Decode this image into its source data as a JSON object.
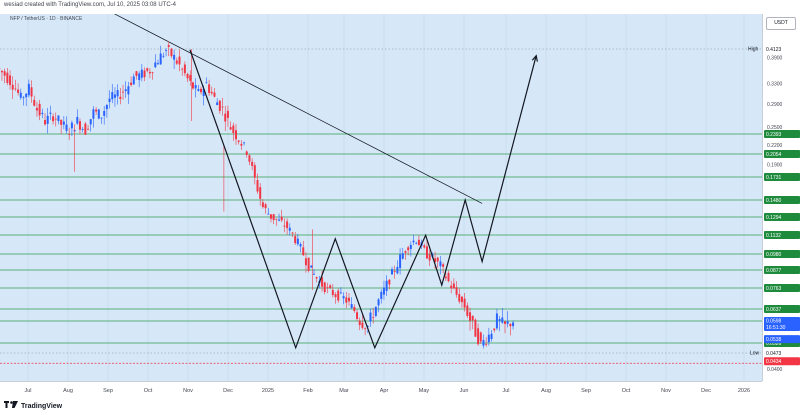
{
  "header": {
    "text": "wesiad created with TradingView.com, Jul 10, 2025 03:08 UTC-4"
  },
  "symbol": {
    "text": "NFP / TetherUS · 1D · BINANCE"
  },
  "currency": "USDT",
  "footer": {
    "logo_icon": "tradingview-logo-icon",
    "brand": "TradingView"
  },
  "colors": {
    "background": "#d6e8f8",
    "candle_up": "#2962ff",
    "candle_down": "#f23645",
    "level_line": "#2e9e4f",
    "level_label_bg": "#1e8a3c",
    "trend_line": "#131722",
    "current_price_bg": "#2962ff",
    "low_line": "#f23645"
  },
  "chart_data": {
    "type": "line",
    "title": "",
    "xlabel": "",
    "ylabel": "",
    "ylim": [
      0.04,
      0.43
    ],
    "x_categories": [
      "Jul",
      "Aug",
      "Sep",
      "Oct",
      "Nov",
      "Dec",
      "2025",
      "Feb",
      "Mar",
      "Apr",
      "May",
      "Jun",
      "Jul",
      "Aug",
      "Sep",
      "Oct",
      "Nov",
      "Dec",
      "2026"
    ],
    "price_ticks": [
      {
        "label": "0.4123",
        "value": 0.4123
      },
      {
        "label": "0.3900",
        "value": 0.39
      },
      {
        "label": "0.3300",
        "value": 0.33
      },
      {
        "label": "0.2900",
        "value": 0.29
      },
      {
        "label": "0.2500",
        "value": 0.25
      },
      {
        "label": "0.2200",
        "value": 0.22
      },
      {
        "label": "0.1900",
        "value": 0.19
      },
      {
        "label": "0.0473",
        "value": 0.0473
      },
      {
        "label": "0.0400",
        "value": 0.04
      }
    ],
    "levels": [
      {
        "label": "0.2393",
        "value": 0.2393
      },
      {
        "label": "0.2054",
        "value": 0.2054
      },
      {
        "label": "0.1731",
        "value": 0.1731
      },
      {
        "label": "0.1480",
        "value": 0.148
      },
      {
        "label": "0.1294",
        "value": 0.1294
      },
      {
        "label": "0.1132",
        "value": 0.1132
      },
      {
        "label": "0.0980",
        "value": 0.098
      },
      {
        "label": "0.0877",
        "value": 0.0877
      },
      {
        "label": "0.0763",
        "value": 0.0763
      },
      {
        "label": "0.0637",
        "value": 0.0637
      },
      {
        "label": "0.0598",
        "value": 0.0598
      },
      {
        "label": "0.0526",
        "value": 0.0526
      }
    ],
    "high": {
      "label": "High",
      "value": 0.4123
    },
    "low": {
      "label": "Low",
      "value": 0.0473
    },
    "low_marker": {
      "label": "0.0434",
      "value": 0.0434
    },
    "current_price": {
      "label": "0.0598",
      "countdown": "16:51:30",
      "value": 0.0598
    },
    "secondary_price": {
      "label": "0.0538",
      "value": 0.0538
    },
    "price_path": [
      [
        -1,
        0.365
      ],
      [
        0,
        0.35
      ],
      [
        1,
        0.33
      ],
      [
        2,
        0.3
      ],
      [
        3,
        0.32
      ],
      [
        4,
        0.28
      ],
      [
        5,
        0.26
      ],
      [
        6,
        0.27
      ],
      [
        7,
        0.255
      ],
      [
        8,
        0.245
      ],
      [
        9,
        0.26
      ],
      [
        10,
        0.245
      ],
      [
        11,
        0.275
      ],
      [
        12,
        0.27
      ],
      [
        13,
        0.3
      ],
      [
        14,
        0.305
      ],
      [
        15,
        0.32
      ],
      [
        16,
        0.345
      ],
      [
        17,
        0.35
      ],
      [
        18,
        0.36
      ],
      [
        19,
        0.385
      ],
      [
        20,
        0.41
      ],
      [
        21,
        0.39
      ],
      [
        22,
        0.36
      ],
      [
        23,
        0.33
      ],
      [
        24,
        0.31
      ],
      [
        25,
        0.33
      ],
      [
        26,
        0.3
      ],
      [
        27,
        0.28
      ],
      [
        28,
        0.25
      ],
      [
        29,
        0.23
      ],
      [
        30,
        0.21
      ],
      [
        31,
        0.17
      ],
      [
        32,
        0.14
      ],
      [
        33,
        0.13
      ],
      [
        34,
        0.125
      ],
      [
        35,
        0.12
      ],
      [
        36,
        0.11
      ],
      [
        37,
        0.098
      ],
      [
        38,
        0.087
      ],
      [
        39,
        0.08
      ],
      [
        40,
        0.075
      ],
      [
        41,
        0.072
      ],
      [
        42,
        0.07
      ],
      [
        43,
        0.065
      ],
      [
        44,
        0.06
      ],
      [
        45,
        0.058
      ],
      [
        46,
        0.065
      ],
      [
        47,
        0.075
      ],
      [
        48,
        0.085
      ],
      [
        49,
        0.095
      ],
      [
        50,
        0.105
      ],
      [
        51,
        0.11
      ],
      [
        52,
        0.1
      ],
      [
        53,
        0.095
      ],
      [
        54,
        0.09
      ],
      [
        55,
        0.08
      ],
      [
        56,
        0.072
      ],
      [
        57,
        0.065
      ],
      [
        58,
        0.058
      ],
      [
        59,
        0.052
      ],
      [
        60,
        0.055
      ],
      [
        61,
        0.06
      ],
      [
        62,
        0.058
      ],
      [
        63,
        0.06
      ]
    ],
    "pattern_path": [
      [
        22.8,
        0.41
      ],
      [
        35.9,
        0.05
      ],
      [
        40.8,
        0.11
      ],
      [
        45.7,
        0.05
      ],
      [
        52.0,
        0.113
      ],
      [
        54.0,
        0.078
      ],
      [
        56.9,
        0.148
      ],
      [
        59.0,
        0.093
      ],
      [
        65.7,
        0.395
      ]
    ],
    "trendline": [
      [
        13.0,
        0.455
      ],
      [
        59.0,
        0.144
      ]
    ]
  }
}
